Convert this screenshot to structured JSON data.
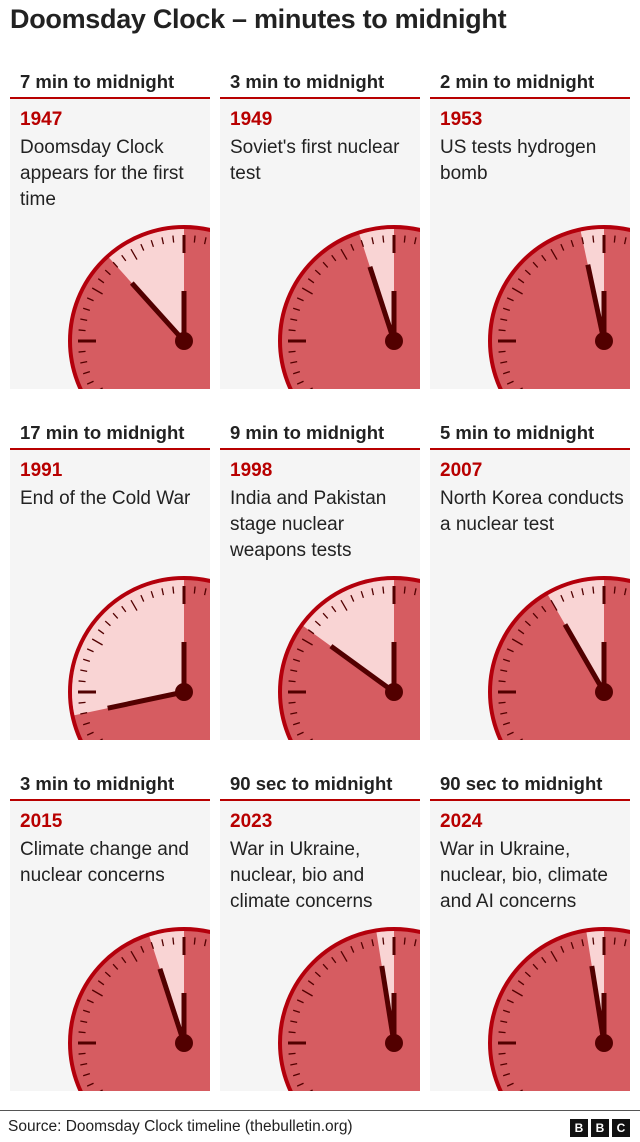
{
  "title": "Doomsday Clock – minutes to midnight",
  "colors": {
    "accent": "#b80000",
    "face": "#d65c61",
    "wedge": "#f9d4d4",
    "ring": "#b3000c",
    "hands": "#520000",
    "panel": "#f5f5f5"
  },
  "clocks": [
    {
      "heading": "7 min to midnight",
      "year": "1947",
      "description": "Doomsday Clock appears for the first time",
      "minutes": 7
    },
    {
      "heading": "3 min to midnight",
      "year": "1949",
      "description": "Soviet's first nuclear test",
      "minutes": 3
    },
    {
      "heading": "2 min to midnight",
      "year": "1953",
      "description": "US tests hydrogen bomb",
      "minutes": 2
    },
    {
      "heading": "17 min to midnight",
      "year": "1991",
      "description": "End of the Cold War",
      "minutes": 17
    },
    {
      "heading": "9 min to midnight",
      "year": "1998",
      "description": "India and Pakistan stage nuclear weapons tests",
      "minutes": 9
    },
    {
      "heading": "5 min to midnight",
      "year": "2007",
      "description": "North Korea conducts a nuclear test",
      "minutes": 5
    },
    {
      "heading": "3 min to midnight",
      "year": "2015",
      "description": "Climate change and nuclear concerns",
      "minutes": 3
    },
    {
      "heading": "90 sec to midnight",
      "year": "2023",
      "description": "War in Ukraine, nuclear, bio and climate concerns",
      "minutes": 1.5
    },
    {
      "heading": "90 sec to midnight",
      "year": "2024",
      "description": "War in Ukraine, nuclear, bio, climate and AI concerns",
      "minutes": 1.5
    }
  ],
  "footer": {
    "source": "Source: Doomsday Clock timeline (thebulletin.org)",
    "logo": [
      "B",
      "B",
      "C"
    ]
  }
}
